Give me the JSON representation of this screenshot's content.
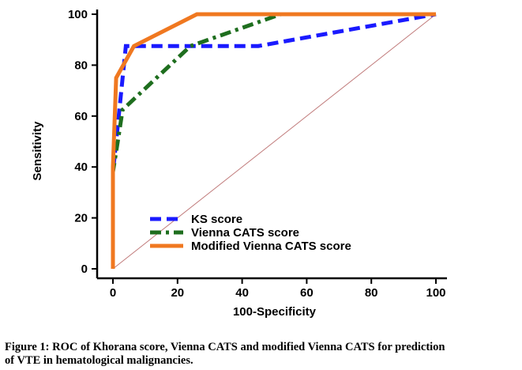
{
  "chart_data": {
    "type": "line",
    "xlabel": "100-Specificity",
    "ylabel": "Sensitivity",
    "xlim": [
      0,
      100
    ],
    "ylim": [
      0,
      100
    ],
    "x_ticks": [
      0,
      20,
      40,
      60,
      80,
      100
    ],
    "y_ticks": [
      0,
      20,
      40,
      60,
      80,
      100
    ],
    "x_tick_labels": [
      "0",
      "20",
      "40",
      "60",
      "80",
      "100"
    ],
    "y_tick_labels": [
      "0",
      "20",
      "40",
      "60",
      "80",
      "100"
    ],
    "grid": false,
    "legend_position": "lower-left",
    "series": [
      {
        "name": "KS score",
        "color": "#1a1aff",
        "style": "dashed",
        "points": [
          [
            0,
            0
          ],
          [
            0,
            38
          ],
          [
            1,
            50
          ],
          [
            4,
            87.5
          ],
          [
            45,
            87.5
          ],
          [
            100,
            100
          ]
        ]
      },
      {
        "name": "Vienna CATS score",
        "color": "#1e6e1e",
        "style": "dashdot",
        "points": [
          [
            0,
            0
          ],
          [
            0,
            38
          ],
          [
            1.5,
            50
          ],
          [
            3,
            62.5
          ],
          [
            24,
            87.5
          ],
          [
            52,
            100
          ],
          [
            100,
            100
          ]
        ]
      },
      {
        "name": "Modified Vienna CATS score",
        "color": "#f07820",
        "style": "solid",
        "points": [
          [
            0,
            0
          ],
          [
            0,
            40
          ],
          [
            1,
            75
          ],
          [
            6.5,
            87.5
          ],
          [
            26,
            100
          ],
          [
            100,
            100
          ]
        ]
      }
    ],
    "reference_line": {
      "points": [
        [
          0,
          0
        ],
        [
          100,
          100
        ]
      ],
      "color": "#c07a7a"
    }
  },
  "caption": {
    "line1": "Figure 1: ROC of Khorana score, Vienna CATS and modified Vienna CATS for prediction",
    "line2": "of VTE in hematological malignancies."
  }
}
